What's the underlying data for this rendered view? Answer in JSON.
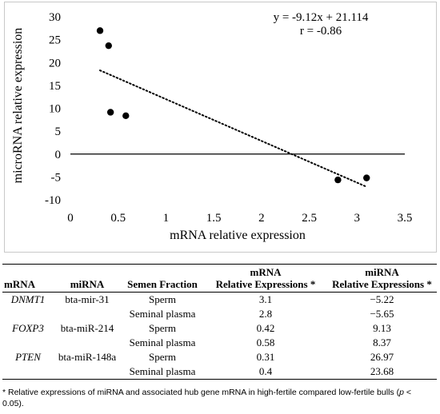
{
  "chart_data": {
    "type": "scatter",
    "x": [
      3.1,
      2.8,
      0.42,
      0.58,
      0.31,
      0.4
    ],
    "y": [
      -5.22,
      -5.65,
      9.13,
      8.37,
      26.97,
      23.68
    ],
    "xlabel": "mRNA relative expression",
    "ylabel": "microRNA relative expression",
    "xlim": [
      0,
      3.5
    ],
    "ylim": [
      -10,
      30
    ],
    "xticks": [
      "0",
      "0.5",
      "1",
      "1.5",
      "2",
      "2.5",
      "3",
      "3.5"
    ],
    "yticks": [
      "-10",
      "-5",
      "0",
      "5",
      "10",
      "15",
      "20",
      "25",
      "30"
    ],
    "trendline": {
      "slope": -9.12,
      "intercept": 21.114,
      "style": "dotted",
      "x_range": [
        0.31,
        3.1
      ]
    },
    "annotations": [
      "y = -9.12x + 21.114",
      "r = -0.86"
    ],
    "grid": false,
    "marker_color": "#000000"
  },
  "table": {
    "headers": {
      "mrna": "mRNA",
      "mirna": "miRNA",
      "fraction": "Semen Fraction",
      "mrna_expr_l1": "mRNA",
      "mrna_expr_l2": "Relative Expressions *",
      "mirna_expr_l1": "miRNA",
      "mirna_expr_l2": "Relative Expressions *"
    },
    "rows": [
      {
        "mrna": "DNMT1",
        "mirna": "bta-mir-31",
        "fraction": "Sperm",
        "mrna_expr": "3.1",
        "mirna_expr": "−5.22"
      },
      {
        "mrna": "",
        "mirna": "",
        "fraction": "Seminal plasma",
        "mrna_expr": "2.8",
        "mirna_expr": "−5.65"
      },
      {
        "mrna": "FOXP3",
        "mirna": "bta-miR-214",
        "fraction": "Sperm",
        "mrna_expr": "0.42",
        "mirna_expr": "9.13"
      },
      {
        "mrna": "",
        "mirna": "",
        "fraction": "Seminal plasma",
        "mrna_expr": "0.58",
        "mirna_expr": "8.37"
      },
      {
        "mrna": "PTEN",
        "mirna": "bta-miR-148a",
        "fraction": "Sperm",
        "mrna_expr": "0.31",
        "mirna_expr": "26.97"
      },
      {
        "mrna": "",
        "mirna": "",
        "fraction": "Seminal plasma",
        "mrna_expr": "0.4",
        "mirna_expr": "23.68"
      }
    ]
  },
  "footnote": {
    "text_main": "* Relative expressions of miRNA and associated hub gene mRNA in high-fertile compared low-fertile bulls (",
    "p_symbol": "p",
    "text_end": " < 0.05)."
  }
}
